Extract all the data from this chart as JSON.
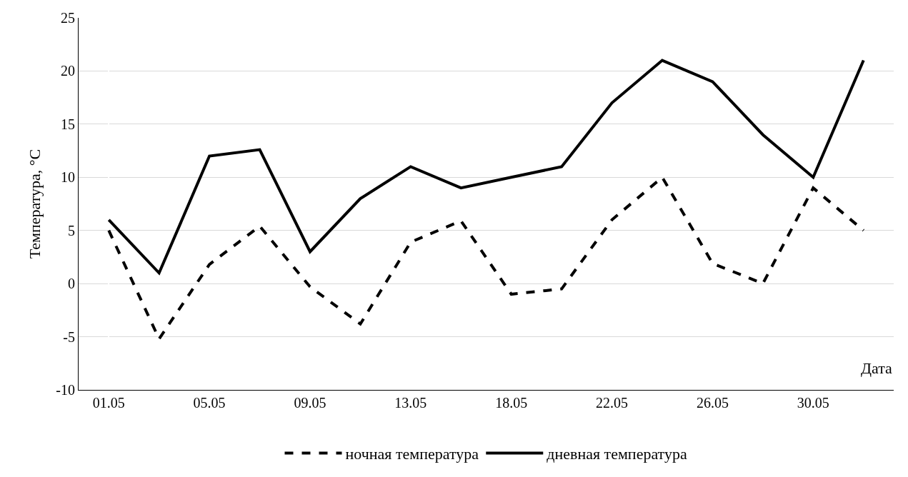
{
  "chart_data": {
    "type": "line",
    "xlabel": "Дата",
    "ylabel": "Температура, °C",
    "categories": [
      "01.05",
      null,
      "05.05",
      null,
      "09.05",
      null,
      "13.05",
      null,
      "18.05",
      null,
      "22.05",
      null,
      "26.05",
      null,
      "30.05",
      null
    ],
    "series": [
      {
        "name": "ночная температура",
        "color": "#000000",
        "line_style": "dashed",
        "values": [
          5,
          -5.2,
          1.8,
          5.4,
          -0.3,
          -3.8,
          3.9,
          5.9,
          -1,
          -0.5,
          6,
          10,
          1.9,
          0,
          9,
          5
        ]
      },
      {
        "name": "дневная температура",
        "color": "#000000",
        "line_style": "solid",
        "values": [
          6,
          1,
          12,
          12.6,
          3,
          8,
          11,
          9,
          10,
          11,
          17,
          21,
          19,
          14,
          10,
          21
        ]
      }
    ],
    "ylim": [
      -10,
      25
    ],
    "yticks": [
      -10,
      -5,
      0,
      5,
      10,
      15,
      20,
      25
    ],
    "grid": "y",
    "legend": "bottom",
    "marker": "none"
  }
}
